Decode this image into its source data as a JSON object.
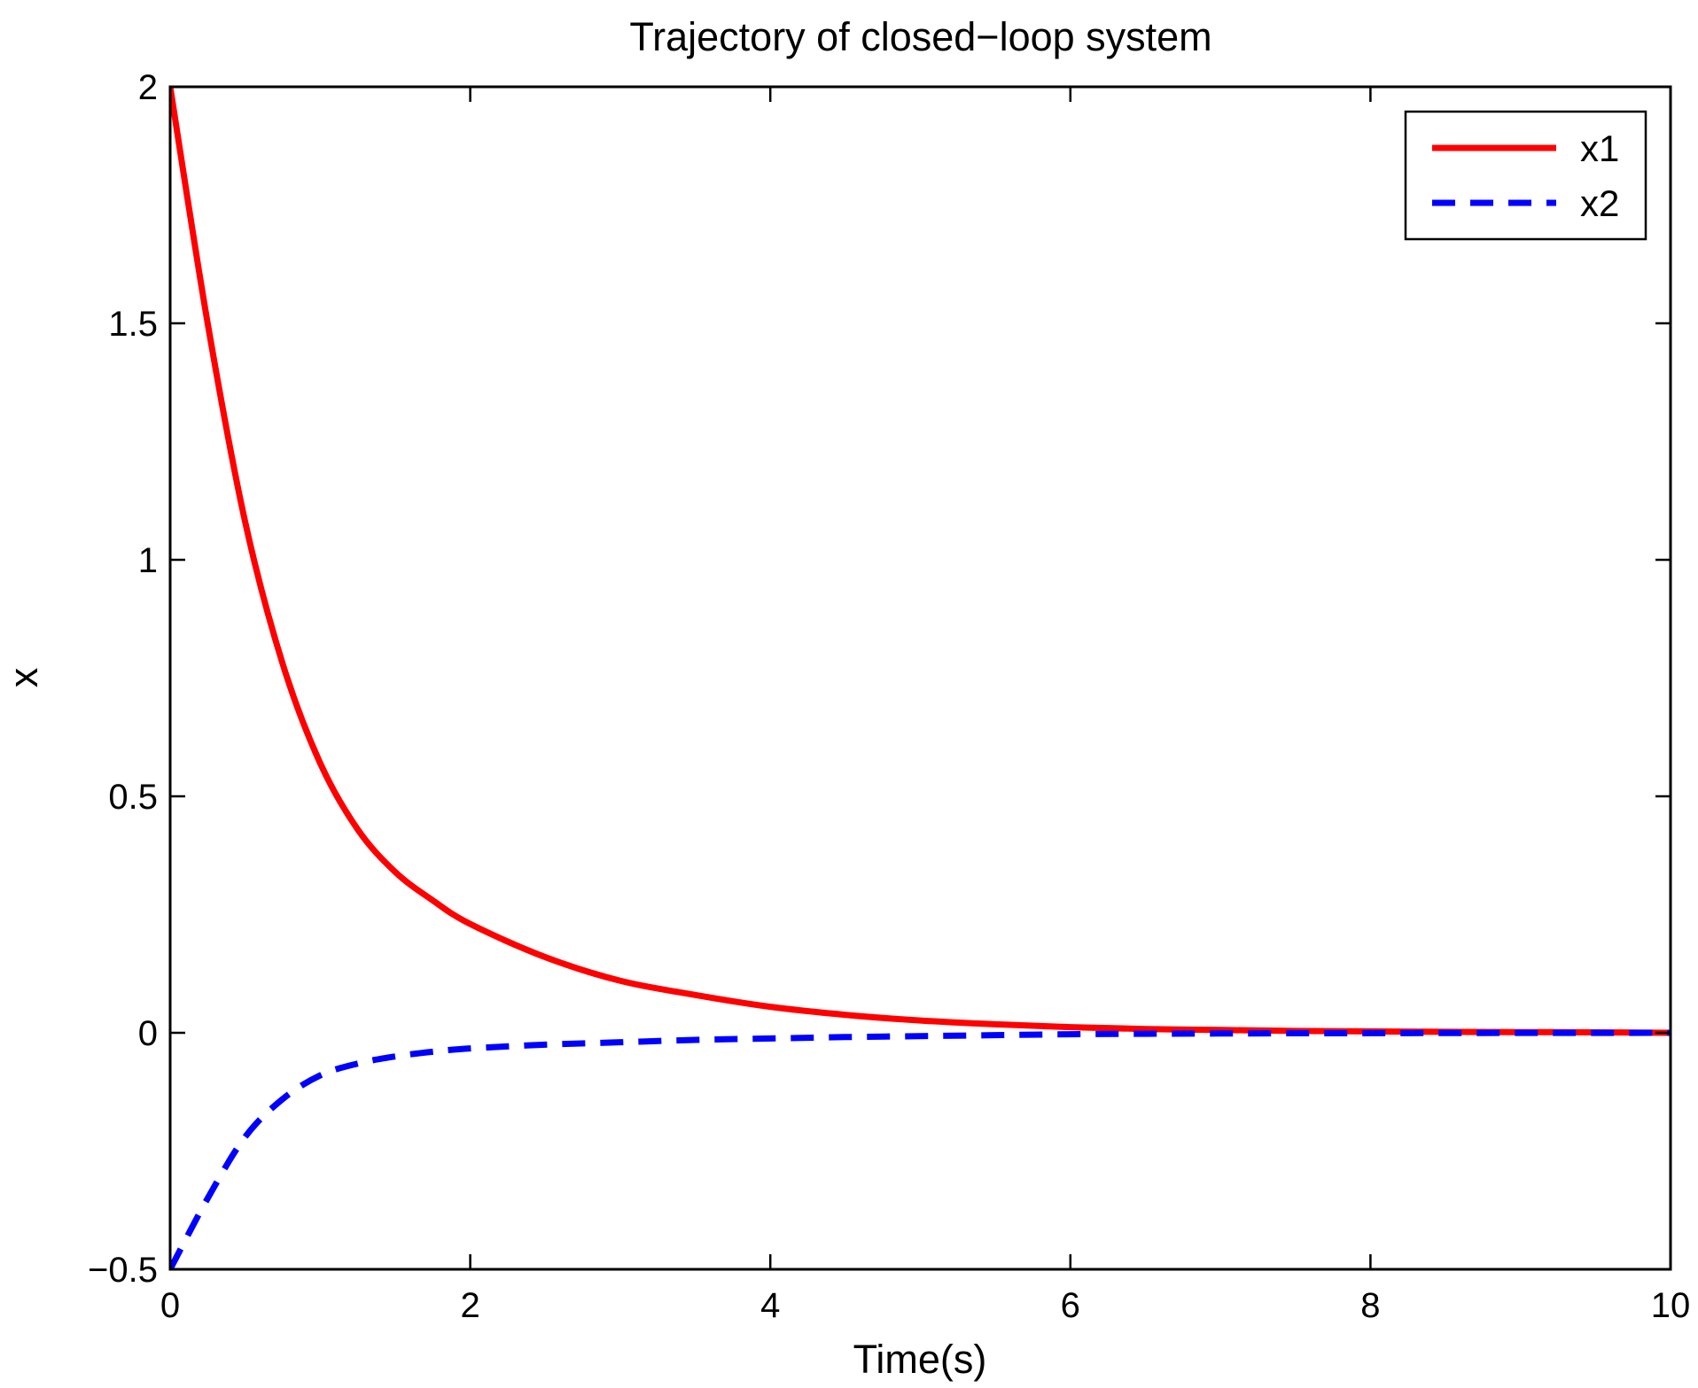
{
  "chart_data": {
    "type": "line",
    "title": "Trajectory of closed−loop system",
    "xlabel": "Time(s)",
    "ylabel": "x",
    "xlim": [
      0,
      10
    ],
    "ylim": [
      -0.5,
      2
    ],
    "xticks": [
      0,
      2,
      4,
      6,
      8,
      10
    ],
    "xtick_labels": [
      "0",
      "2",
      "4",
      "6",
      "8",
      "10"
    ],
    "yticks": [
      -0.5,
      0,
      0.5,
      1,
      1.5,
      2
    ],
    "ytick_labels": [
      "−0.5",
      "0",
      "0.5",
      "1",
      "1.5",
      "2"
    ],
    "grid": false,
    "legend_position": "top-right",
    "x": [
      0,
      0.25,
      0.5,
      0.75,
      1,
      1.25,
      1.5,
      1.75,
      2,
      2.5,
      3,
      3.5,
      4,
      4.5,
      5,
      5.5,
      6,
      6.5,
      7,
      7.5,
      8,
      8.5,
      9,
      9.5,
      10
    ],
    "series": [
      {
        "name": "x1",
        "color": "#ff0000",
        "style": "solid",
        "values": [
          2.0,
          1.5,
          1.08,
          0.78,
          0.57,
          0.43,
          0.34,
          0.28,
          0.23,
          0.16,
          0.11,
          0.08,
          0.055,
          0.038,
          0.026,
          0.018,
          0.012,
          0.008,
          0.006,
          0.004,
          0.003,
          0.002,
          0.0015,
          0.001,
          0.0
        ]
      },
      {
        "name": "x2",
        "color": "#0000ff",
        "style": "dashed",
        "values": [
          -0.5,
          -0.35,
          -0.22,
          -0.14,
          -0.09,
          -0.065,
          -0.05,
          -0.04,
          -0.033,
          -0.025,
          -0.02,
          -0.015,
          -0.012,
          -0.009,
          -0.007,
          -0.005,
          -0.003,
          -0.002,
          -0.0015,
          -0.001,
          -0.0008,
          -0.0005,
          -0.0003,
          -0.0002,
          0.0
        ]
      }
    ]
  }
}
